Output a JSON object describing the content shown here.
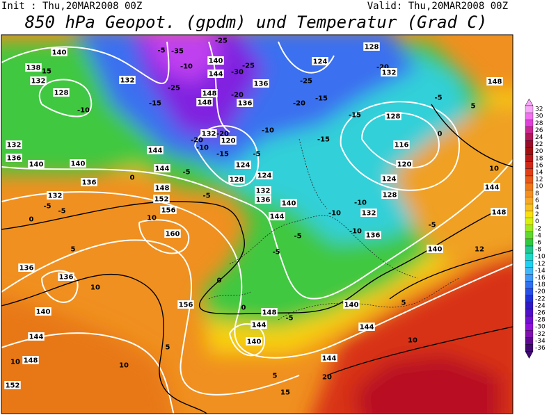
{
  "header": {
    "init": "Init : Thu,20MAR2008 00Z",
    "valid": "Valid: Thu,20MAR2008 00Z",
    "title": "850 hPa Geopot. (gpdm) und Temperatur (Grad C)"
  },
  "colorbar": {
    "labels": [
      "32",
      "30",
      "28",
      "26",
      "24",
      "22",
      "20",
      "18",
      "16",
      "14",
      "12",
      "10",
      "8",
      "6",
      "4",
      "2",
      "0",
      "-2",
      "-4",
      "-6",
      "-8",
      "-10",
      "-12",
      "-14",
      "-16",
      "-18",
      "-20",
      "-22",
      "-24",
      "-26",
      "-28",
      "-30",
      "-32",
      "-34",
      "-36"
    ],
    "colors": [
      "#f8a8f8",
      "#f070f0",
      "#e040d8",
      "#c82890",
      "#b01858",
      "#980c28",
      "#a01010",
      "#b81818",
      "#d02818",
      "#e04018",
      "#e85818",
      "#f07818",
      "#f59020",
      "#f8a828",
      "#f8c020",
      "#f8e010",
      "#d8f010",
      "#a0e820",
      "#60d830",
      "#30c840",
      "#20c890",
      "#20d8c8",
      "#20d0f0",
      "#40b8f8",
      "#4098f8",
      "#3070f0",
      "#2850e8",
      "#2030d8",
      "#3018c8",
      "#5010c8",
      "#7010d0",
      "#9010d8",
      "#8010b0",
      "#600890",
      "#400870"
    ]
  },
  "map": {
    "labels": [
      "140",
      "138",
      "15",
      "132",
      "128",
      "132",
      "-10",
      "-15",
      "-5",
      "-35",
      "-25",
      "-10",
      "140",
      "144",
      "-30",
      "-25",
      "136",
      "-25",
      "148",
      "148",
      "-20",
      "136",
      "124",
      "-25",
      "-20",
      "-15",
      "128",
      "-20",
      "132",
      "148",
      "-15",
      "128",
      "-5",
      "-10",
      "132",
      "-20",
      "-20",
      "-10",
      "120",
      "-15",
      "-5",
      "-15",
      "116",
      "120",
      "144",
      "144",
      "-5",
      "124",
      "124",
      "128",
      "132",
      "136",
      "124",
      "128",
      "-10",
      "132",
      "140",
      "144",
      "-10",
      "-10",
      "136",
      "-5",
      "132",
      "136",
      "140",
      "140",
      "136",
      "0",
      "148",
      "-5",
      "152",
      "156",
      "10",
      "160",
      "132",
      "-5",
      "-5",
      "0",
      "5",
      "136",
      "136",
      "10",
      "140",
      "144",
      "10",
      "148",
      "10",
      "152",
      "156",
      "0",
      "0",
      "148",
      "144",
      "-5",
      "140",
      "5",
      "144",
      "140",
      "144",
      "5",
      "10",
      "140",
      "12",
      "10",
      "144",
      "148",
      "5",
      "0",
      "5",
      "20",
      "15",
      "-5",
      "-5"
    ]
  }
}
